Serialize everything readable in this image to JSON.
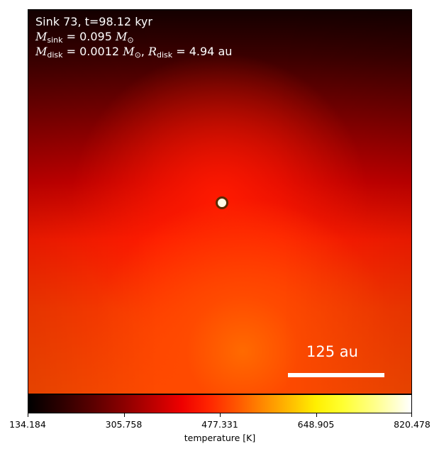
{
  "chart_data": {
    "type": "heatmap",
    "colormap": "hot",
    "annotations": {
      "line1": "Sink 73, t=98.12 kyr",
      "m_sink_symbol": "M",
      "m_sink_sub": "sink",
      "m_sink_value": " = 0.095 ",
      "m_sink_unit": "M",
      "m_sink_unit_sub": "⊙",
      "m_disk_symbol": "M",
      "m_disk_sub": "disk",
      "m_disk_value": " = 0.0012 ",
      "m_disk_unit": "M",
      "m_disk_unit_sub": "⊙",
      "r_disk_sep": ", ",
      "r_disk_symbol": "R",
      "r_disk_sub": "disk",
      "r_disk_value": " = 4.94 au"
    },
    "scale_bar_label": "125 au",
    "colorbar": {
      "label": "temperature [K]",
      "min": 134.184,
      "max": 820.478,
      "ticks": [
        "134.184",
        "305.758",
        "477.331",
        "648.905",
        "820.478"
      ]
    }
  }
}
